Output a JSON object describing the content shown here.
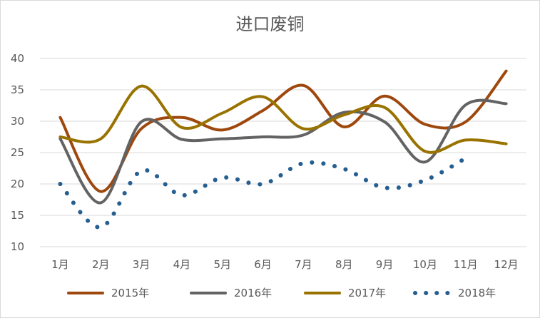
{
  "chart_data": {
    "type": "line",
    "title": "进口废铜",
    "xlabel": "",
    "ylabel": "",
    "categories": [
      "1月",
      "2月",
      "3月",
      "4月",
      "5月",
      "6月",
      "7月",
      "8月",
      "9月",
      "10月",
      "11月",
      "12月"
    ],
    "ylim": [
      10,
      40
    ],
    "yticks": [
      10,
      15,
      20,
      25,
      30,
      35,
      40
    ],
    "grid": true,
    "legend": "bottom",
    "series": [
      {
        "name": "2015年",
        "color": "#9e480e",
        "style": "solid",
        "values": [
          30.6,
          18.8,
          28.8,
          30.6,
          28.6,
          31.7,
          35.7,
          29.1,
          34.0,
          29.5,
          29.9,
          38.0
        ]
      },
      {
        "name": "2016年",
        "color": "#636363",
        "style": "solid",
        "values": [
          27.2,
          17.0,
          29.9,
          27.1,
          27.2,
          27.5,
          27.8,
          31.4,
          29.9,
          23.5,
          32.6,
          32.8
        ]
      },
      {
        "name": "2017年",
        "color": "#997300",
        "style": "solid",
        "values": [
          27.5,
          27.2,
          35.6,
          29.0,
          31.3,
          33.9,
          28.8,
          31.0,
          32.2,
          25.2,
          27.0,
          26.4
        ]
      },
      {
        "name": "2018年",
        "color": "#255e91",
        "style": "dotted",
        "values": [
          20.0,
          13.1,
          22.1,
          18.2,
          21.0,
          20.0,
          23.3,
          22.4,
          19.4,
          20.6,
          24.1,
          null
        ]
      }
    ]
  }
}
